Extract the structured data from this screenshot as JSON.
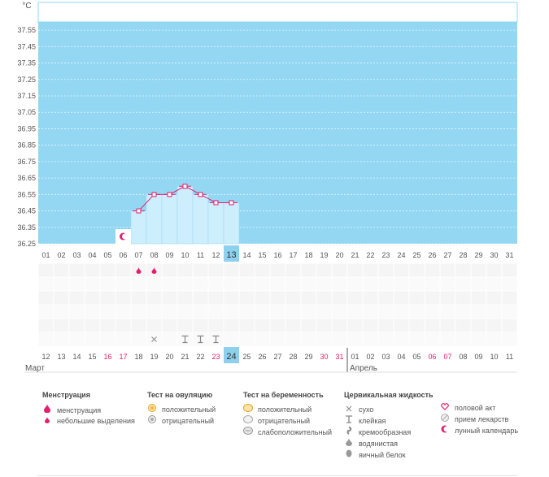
{
  "chart_data": {
    "type": "line",
    "ylabel": "°C",
    "y_ticks": [
      "37.55",
      "37.45",
      "37.35",
      "37.25",
      "37.15",
      "37.05",
      "36.95",
      "36.85",
      "36.75",
      "36.65",
      "36.55",
      "36.45",
      "36.35",
      "36.25"
    ],
    "ylim": [
      36.25,
      37.6
    ],
    "cycle_days": [
      "01",
      "02",
      "03",
      "04",
      "05",
      "06",
      "07",
      "08",
      "09",
      "10",
      "11",
      "12",
      "13",
      "14",
      "15",
      "16",
      "17",
      "18",
      "19",
      "20",
      "21",
      "22",
      "23",
      "24",
      "25",
      "26",
      "27",
      "28",
      "29",
      "30",
      "31"
    ],
    "current_cycle_day": "13",
    "temperature_series": {
      "cycle_day_index": [
        7,
        8,
        9,
        10,
        11,
        12,
        13
      ],
      "values": [
        36.45,
        36.55,
        36.55,
        36.6,
        36.55,
        36.5,
        36.5
      ]
    },
    "dates": [
      "12",
      "13",
      "14",
      "15",
      "16",
      "17",
      "18",
      "19",
      "20",
      "21",
      "22",
      "23",
      "24",
      "25",
      "26",
      "27",
      "28",
      "29",
      "30",
      "31",
      "01",
      "02",
      "03",
      "04",
      "05",
      "06",
      "07",
      "08",
      "09",
      "10",
      "11"
    ],
    "weekend_indices": [
      4,
      5,
      11,
      18,
      19,
      25,
      26
    ],
    "today_index": 12,
    "month_labels": [
      "Март",
      "Апрель"
    ],
    "markers": {
      "lunar_calendar_cycle_day": 6,
      "menstruation_spotting_cycle_days": [
        7,
        8
      ],
      "cervical_dry_cycle_days": [
        8
      ],
      "cervical_sticky_cycle_days": [
        10,
        11,
        12
      ]
    },
    "colors": {
      "plot_bg": "#93d7f3",
      "bar_fill": "#cdeefc",
      "line": "#e0216f",
      "today": "#8dd1ef",
      "weekend": "#e0216f"
    }
  },
  "legend": {
    "menstruation": {
      "title": "Менструация",
      "items": [
        {
          "icon": "drop-large-icon",
          "label": "менструация"
        },
        {
          "icon": "drop-small-icon",
          "label": "небольшие выделения"
        }
      ]
    },
    "ovulation_test": {
      "title": "Тест на овуляцию",
      "items": [
        {
          "icon": "ovulation-positive-icon",
          "label": "положительный"
        },
        {
          "icon": "ovulation-negative-icon",
          "label": "отрицательный"
        }
      ]
    },
    "pregnancy_test": {
      "title": "Тест на беременность",
      "items": [
        {
          "icon": "pregnancy-positive-icon",
          "label": "положительный"
        },
        {
          "icon": "pregnancy-negative-icon",
          "label": "отрицательный"
        },
        {
          "icon": "pregnancy-weak-icon",
          "label": "слабоположительный"
        }
      ]
    },
    "cervical_fluid": {
      "title": "Цервикальная жидкость",
      "items": [
        {
          "icon": "dry-icon",
          "label": "сухо"
        },
        {
          "icon": "sticky-icon",
          "label": "клейкая"
        },
        {
          "icon": "creamy-icon",
          "label": "кремообразная"
        },
        {
          "icon": "watery-icon",
          "label": "водянистая"
        },
        {
          "icon": "egg-white-icon",
          "label": "яичный белок"
        }
      ]
    },
    "other": {
      "items": [
        {
          "icon": "heart-icon",
          "label": "половой акт"
        },
        {
          "icon": "pill-icon",
          "label": "прием лекарств"
        },
        {
          "icon": "moon-icon",
          "label": "лунный календарь"
        }
      ]
    }
  }
}
